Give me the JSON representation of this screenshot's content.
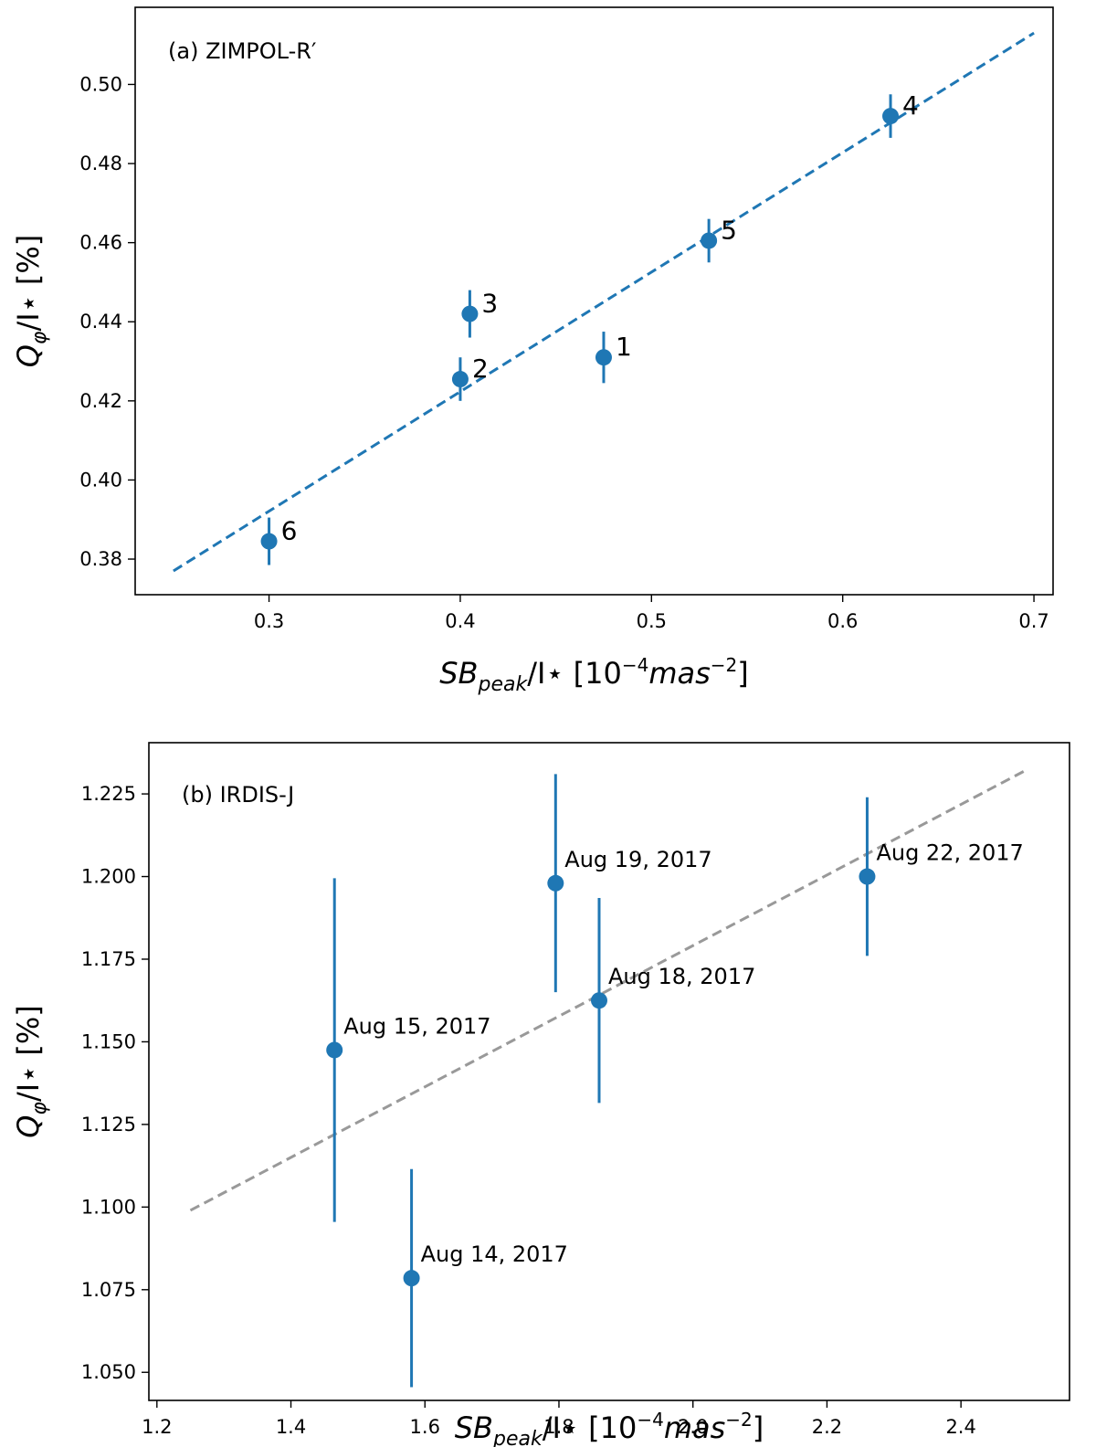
{
  "colors": {
    "points": "#1f77b4",
    "fit_a": "#1f77b4",
    "fit_b": "#999999"
  },
  "chart_data": [
    {
      "type": "scatter",
      "panel_label": "(a) ZIMPOL-R′",
      "xlabel": {
        "base": "SB",
        "sub": "peak",
        "mid": "/I⋆ [10",
        "exp1": "−4",
        "mid2": "mas",
        "exp2": "−2",
        "end": "]"
      },
      "ylabel": {
        "base": "Q",
        "sub": "φ",
        "end": "/I⋆ [%]"
      },
      "xlim": [
        0.23,
        0.71
      ],
      "ylim": [
        0.371,
        0.5195
      ],
      "xticks": [
        0.3,
        0.4,
        0.5,
        0.6,
        0.7
      ],
      "xtick_labels": [
        "0.3",
        "0.4",
        "0.5",
        "0.6",
        "0.7"
      ],
      "yticks": [
        0.38,
        0.4,
        0.42,
        0.44,
        0.46,
        0.48,
        0.5
      ],
      "ytick_labels": [
        "0.38",
        "0.40",
        "0.42",
        "0.44",
        "0.46",
        "0.48",
        "0.50"
      ],
      "grid": false,
      "points": [
        {
          "label": "1",
          "x": 0.475,
          "y": 0.431,
          "err": 0.0065
        },
        {
          "label": "2",
          "x": 0.4,
          "y": 0.4255,
          "err": 0.0055
        },
        {
          "label": "3",
          "x": 0.405,
          "y": 0.442,
          "err": 0.006
        },
        {
          "label": "4",
          "x": 0.625,
          "y": 0.492,
          "err": 0.0055
        },
        {
          "label": "5",
          "x": 0.53,
          "y": 0.4605,
          "err": 0.0055
        },
        {
          "label": "6",
          "x": 0.3,
          "y": 0.3845,
          "err": 0.006
        }
      ],
      "fit_line": {
        "x": [
          0.25,
          0.7
        ],
        "y": [
          0.377,
          0.513
        ],
        "style": "dashed"
      }
    },
    {
      "type": "scatter",
      "panel_label": "(b) IRDIS-J",
      "xlabel": {
        "base": "SB",
        "sub": "peak",
        "mid": "/I⋆ [10",
        "exp1": "−4",
        "mid2": "mas",
        "exp2": "−2",
        "end": "]"
      },
      "ylabel": {
        "base": "Q",
        "sub": "φ",
        "end": "/I⋆ [%]"
      },
      "xlim": [
        1.188,
        2.562
      ],
      "ylim": [
        1.0415,
        1.2405
      ],
      "xticks": [
        1.2,
        1.4,
        1.6,
        1.8,
        2.0,
        2.2,
        2.4
      ],
      "xtick_labels": [
        "1.2",
        "1.4",
        "1.6",
        "1.8",
        "2.0",
        "2.2",
        "2.4"
      ],
      "yticks": [
        1.05,
        1.075,
        1.1,
        1.125,
        1.15,
        1.175,
        1.2,
        1.225
      ],
      "ytick_labels": [
        "1.050",
        "1.075",
        "1.100",
        "1.125",
        "1.150",
        "1.175",
        "1.200",
        "1.225"
      ],
      "grid": false,
      "points": [
        {
          "label": "Aug 14, 2017",
          "x": 1.58,
          "y": 1.0785,
          "err": 0.033
        },
        {
          "label": "Aug 15, 2017",
          "x": 1.465,
          "y": 1.1475,
          "err": 0.052
        },
        {
          "label": "Aug 18, 2017",
          "x": 1.86,
          "y": 1.1625,
          "err": 0.031
        },
        {
          "label": "Aug 19, 2017",
          "x": 1.795,
          "y": 1.198,
          "err": 0.033
        },
        {
          "label": "Aug 22, 2017",
          "x": 2.26,
          "y": 1.2,
          "err": 0.024
        }
      ],
      "fit_line": {
        "x": [
          1.25,
          2.5
        ],
        "y": [
          1.099,
          1.2325
        ],
        "style": "dashed"
      }
    }
  ]
}
